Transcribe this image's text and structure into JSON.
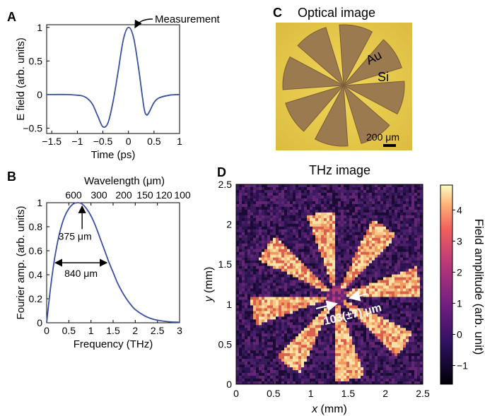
{
  "panels": {
    "A": {
      "letter": "A"
    },
    "B": {
      "letter": "B"
    },
    "C": {
      "letter": "C",
      "title": "Optical image"
    },
    "D": {
      "letter": "D",
      "title": "THz image"
    }
  },
  "colors": {
    "curve": "#3b4fa0",
    "photo_background": "#e6c84c",
    "photo_metal": "#9a7a4e",
    "thz_background": "#3a1a5a",
    "thz_bright": "#f7c585"
  },
  "chart_data": [
    {
      "id": "A",
      "type": "line",
      "title": "",
      "xlabel": "Time (ps)",
      "ylabel": "E field (arb. units)",
      "xlim": [
        -1.6,
        1
      ],
      "ylim": [
        -0.58,
        1.04
      ],
      "xticks": [
        -1.5,
        -1,
        -0.5,
        0,
        0.5,
        1
      ],
      "xtick_labels": [
        "−1.5",
        "−1",
        "−0.5",
        "0",
        "0.5",
        "1"
      ],
      "yticks": [
        -0.5,
        0,
        0.5,
        1
      ],
      "ytick_labels": [
        "−0.5",
        "0",
        "0.5",
        "1"
      ],
      "series": [
        {
          "x": [
            -1.6,
            -1.2,
            -1.0,
            -0.9,
            -0.8,
            -0.7,
            -0.6,
            -0.5,
            -0.4,
            -0.3,
            -0.2,
            -0.1,
            0.0,
            0.1,
            0.2,
            0.3,
            0.35,
            0.4,
            0.5,
            0.6,
            0.8,
            1.0
          ],
          "y": [
            0,
            0,
            -0.01,
            -0.02,
            -0.06,
            -0.15,
            -0.32,
            -0.48,
            -0.42,
            -0.1,
            0.35,
            0.82,
            1.0,
            0.85,
            0.38,
            -0.18,
            -0.3,
            -0.27,
            -0.12,
            -0.05,
            -0.01,
            0
          ]
        }
      ],
      "annotations": [
        {
          "text": "Measurement",
          "x": 0,
          "y": 1
        }
      ]
    },
    {
      "id": "B",
      "type": "line",
      "title": "",
      "xlabel": "Frequency (THz)",
      "ylabel": "Fourier amp. (arb. units)",
      "top_xlabel": "Wavelength (μm)",
      "xlim": [
        0,
        3
      ],
      "ylim": [
        0,
        1
      ],
      "xticks": [
        0,
        0.5,
        1,
        1.5,
        2,
        2.5,
        3
      ],
      "xtick_labels": [
        "0",
        "0.5",
        "1",
        "1.5",
        "2",
        "2.5",
        "3"
      ],
      "yticks": [
        0,
        0.2,
        0.4,
        0.6,
        0.8,
        1
      ],
      "ytick_labels": [
        "0",
        "0.2",
        "0.4",
        "0.6",
        "0.8",
        "1"
      ],
      "top_ticks": [
        {
          "label": "600",
          "frequency": 0.5
        },
        {
          "label": "300",
          "frequency": 1.0
        },
        {
          "label": "200",
          "frequency": 1.5
        },
        {
          "label": "150",
          "frequency": 2.0
        },
        {
          "label": "120",
          "frequency": 2.5
        },
        {
          "label": "100",
          "frequency": 3.0
        }
      ],
      "series": [
        {
          "x": [
            0,
            0.1,
            0.2,
            0.3,
            0.4,
            0.5,
            0.6,
            0.7,
            0.8,
            0.9,
            1.0,
            1.1,
            1.2,
            1.3,
            1.4,
            1.5,
            1.6,
            1.7,
            1.8,
            1.9,
            2.0,
            2.2,
            2.4,
            2.6,
            2.8,
            3.0
          ],
          "y": [
            0,
            0.33,
            0.58,
            0.76,
            0.88,
            0.95,
            0.99,
            1.0,
            0.99,
            0.95,
            0.89,
            0.81,
            0.71,
            0.61,
            0.51,
            0.42,
            0.33,
            0.26,
            0.2,
            0.15,
            0.11,
            0.06,
            0.03,
            0.015,
            0.007,
            0.004
          ]
        }
      ],
      "annotations": [
        {
          "text": "375 μm",
          "x": 0.8,
          "y": 0.99
        },
        {
          "text": "840 μm",
          "x_from": 0.18,
          "x_to": 1.37,
          "y": 0.5
        }
      ]
    },
    {
      "id": "C",
      "type": "image",
      "title": "Optical image",
      "labels": [
        "Au",
        "Si"
      ],
      "scale_bar": "200 μm"
    },
    {
      "id": "D",
      "type": "heatmap",
      "title": "THz image",
      "xlabel_var": "x",
      "xlabel_unit": " (mm)",
      "ylabel_var": "y",
      "ylabel_unit": " (mm)",
      "xlim": [
        0,
        2.5
      ],
      "ylim": [
        0,
        2.5
      ],
      "xticks": [
        0,
        0.5,
        1,
        1.5,
        2,
        2.5
      ],
      "xtick_labels": [
        "0",
        "0.5",
        "1",
        "1.5",
        "2",
        "2.5"
      ],
      "yticks": [
        0,
        0.5,
        1,
        1.5,
        2,
        2.5
      ],
      "ytick_labels": [
        "0",
        "0.5",
        "1",
        "1.5",
        "2",
        "2.5"
      ],
      "colorbar_label": "Field amplitude (arb. unit)",
      "colorbar_range": [
        -1.6,
        4.8
      ],
      "colorbar_ticks": [
        -1,
        0,
        1,
        2,
        3,
        4
      ],
      "colorbar_tick_labels": [
        "−1",
        "0",
        "1",
        "2",
        "3",
        "4"
      ],
      "annotation": "103(±7) μm"
    }
  ]
}
